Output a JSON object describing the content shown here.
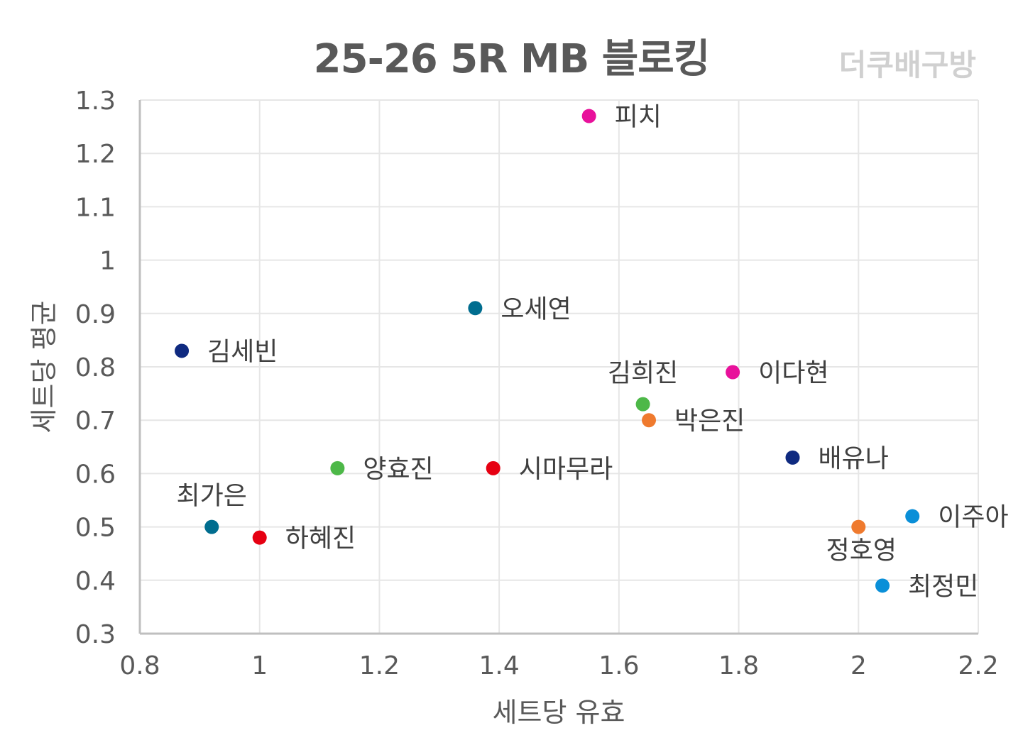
{
  "chart_data": {
    "type": "scatter",
    "title": "25-26  5R MB 블로킹",
    "watermark": "더쿠배구방",
    "xlabel": "세트당 유효",
    "ylabel": "세트당 평균",
    "xlim": [
      0.8,
      2.2
    ],
    "ylim": [
      0.3,
      1.3
    ],
    "xticks": [
      "0.8",
      "1",
      "1.2",
      "1.4",
      "1.6",
      "1.8",
      "2",
      "2.2"
    ],
    "yticks": [
      "0.3",
      "0.4",
      "0.5",
      "0.6",
      "0.7",
      "0.8",
      "0.9",
      "1",
      "1.1",
      "1.2",
      "1.3"
    ],
    "grid": true,
    "points": [
      {
        "label": "피치",
        "x": 1.55,
        "y": 1.27,
        "color": "#e8119b",
        "label_pos": "right"
      },
      {
        "label": "오세연",
        "x": 1.36,
        "y": 0.91,
        "color": "#006d8f",
        "label_pos": "right"
      },
      {
        "label": "김세빈",
        "x": 0.87,
        "y": 0.83,
        "color": "#0f2a80",
        "label_pos": "right"
      },
      {
        "label": "이다현",
        "x": 1.79,
        "y": 0.79,
        "color": "#e8119b",
        "label_pos": "right"
      },
      {
        "label": "김희진",
        "x": 1.64,
        "y": 0.73,
        "color": "#4db848",
        "label_pos": "above"
      },
      {
        "label": "박은진",
        "x": 1.65,
        "y": 0.7,
        "color": "#ef7a2e",
        "label_pos": "right"
      },
      {
        "label": "배유나",
        "x": 1.89,
        "y": 0.63,
        "color": "#0f2a80",
        "label_pos": "right"
      },
      {
        "label": "양효진",
        "x": 1.13,
        "y": 0.61,
        "color": "#4db848",
        "label_pos": "right"
      },
      {
        "label": "시마무라",
        "x": 1.39,
        "y": 0.61,
        "color": "#e60012",
        "label_pos": "right"
      },
      {
        "label": "이주아",
        "x": 2.09,
        "y": 0.52,
        "color": "#0a8fd8",
        "label_pos": "right"
      },
      {
        "label": "최가은",
        "x": 0.92,
        "y": 0.5,
        "color": "#006d8f",
        "label_pos": "above"
      },
      {
        "label": "정호영",
        "x": 2.0,
        "y": 0.5,
        "color": "#ef7a2e",
        "label_pos": "below"
      },
      {
        "label": "하혜진",
        "x": 1.0,
        "y": 0.48,
        "color": "#e60012",
        "label_pos": "right"
      },
      {
        "label": "최정민",
        "x": 2.04,
        "y": 0.39,
        "color": "#0a8fd8",
        "label_pos": "right"
      }
    ]
  }
}
